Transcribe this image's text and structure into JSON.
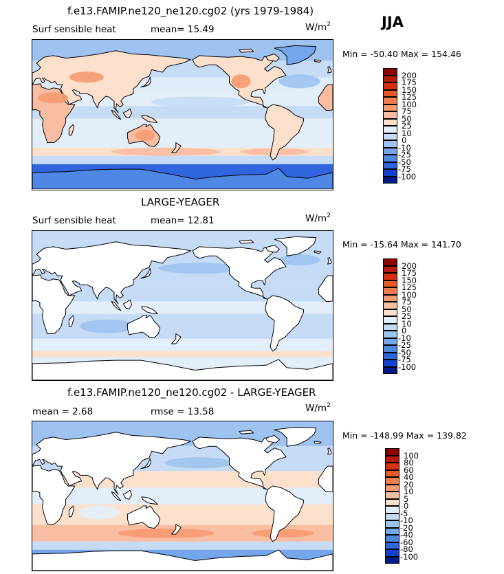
{
  "season": "JJA",
  "panels": [
    {
      "title": "f.e13.FAMIP.ne120_ne120.cg02 (yrs 1979-1984)",
      "left": "Surf sensible heat",
      "stat": "mean=  15.49",
      "units": "W/m",
      "units_exp": "2",
      "minmax": "Min = -50.40 Max = 154.46",
      "style": "model",
      "levels": [
        "200",
        "175",
        "150",
        "125",
        "100",
        "75",
        "50",
        "25",
        "10",
        "0",
        "-10",
        "-25",
        "-50",
        "-75",
        "-100"
      ],
      "colors": [
        "#8b0000",
        "#b71c0b",
        "#d7300f",
        "#ea5a28",
        "#f37c4e",
        "#f69a72",
        "#f9bda2",
        "#fde0cc",
        "#e2eefa",
        "#c6dbf6",
        "#9ec3f0",
        "#74a6eb",
        "#4f87e5",
        "#2f66de",
        "#1541cc",
        "#001a8c"
      ]
    },
    {
      "title": "LARGE-YEAGER",
      "left": "Surf sensible heat",
      "stat": "mean=  12.81",
      "units": "W/m",
      "units_exp": "2",
      "minmax": "Min = -15.64 Max = 141.70",
      "style": "obs",
      "levels": [
        "200",
        "175",
        "150",
        "125",
        "100",
        "75",
        "50",
        "25",
        "10",
        "0",
        "-10",
        "-25",
        "-50",
        "-75",
        "-100"
      ],
      "colors": [
        "#8b0000",
        "#b71c0b",
        "#d7300f",
        "#ea5a28",
        "#f37c4e",
        "#f69a72",
        "#f9bda2",
        "#fde0cc",
        "#e2eefa",
        "#c6dbf6",
        "#9ec3f0",
        "#74a6eb",
        "#4f87e5",
        "#2f66de",
        "#1541cc",
        "#001a8c"
      ]
    },
    {
      "title": "f.e13.FAMIP.ne120_ne120.cg02 - LARGE-YEAGER",
      "left": "mean =   2.68",
      "stat": "rmse =  13.58",
      "units": "W/m",
      "units_exp": "2",
      "minmax": "Min = -148.99 Max = 139.82",
      "style": "diff",
      "levels": [
        "100",
        "80",
        "60",
        "40",
        "20",
        "10",
        "5",
        "0",
        "-5",
        "-10",
        "-20",
        "-40",
        "-60",
        "-80",
        "-100"
      ],
      "colors": [
        "#8b0000",
        "#b71c0b",
        "#d7300f",
        "#ea5a28",
        "#f37c4e",
        "#f69a72",
        "#f9bda2",
        "#fde0cc",
        "#e2eefa",
        "#c6dbf6",
        "#9ec3f0",
        "#74a6eb",
        "#4f87e5",
        "#2f66de",
        "#1541cc",
        "#001a8c"
      ]
    }
  ]
}
